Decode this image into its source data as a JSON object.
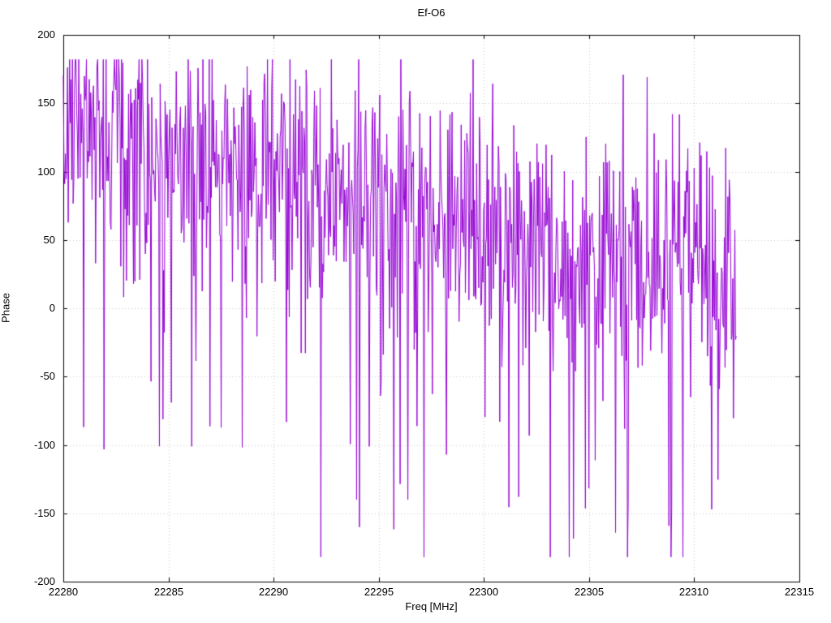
{
  "chart_data": {
    "type": "line",
    "title": "Ef-O6",
    "xlabel": "Freq [MHz]",
    "ylabel": "Phase",
    "xlim": [
      22280,
      22315
    ],
    "ylim": [
      -200,
      200
    ],
    "xticks": [
      22280,
      22285,
      22290,
      22295,
      22300,
      22305,
      22310,
      22315
    ],
    "yticks": [
      -200,
      -150,
      -100,
      -50,
      0,
      50,
      100,
      150,
      200
    ],
    "grid": true,
    "grid_style": "dotted",
    "grid_color": "#c8c8c8",
    "border_color": "#000000",
    "legend": "none",
    "series": [
      {
        "name": "phase",
        "color": "#9400d3",
        "x_start": 22280,
        "x_end": 22312,
        "n_points": 960,
        "seed": 1337,
        "trend_x": [
          22280,
          22283,
          22286,
          22289,
          22292,
          22295,
          22298,
          22300,
          22303,
          22306,
          22309,
          22312
        ],
        "trend_y": [
          140,
          125,
          112,
          100,
          95,
          80,
          65,
          55,
          45,
          40,
          35,
          40
        ],
        "noise_std": 45,
        "spike_probability": 0.05,
        "spike_depth": [
          150,
          260
        ],
        "clamp": [
          -182,
          182
        ]
      }
    ]
  }
}
